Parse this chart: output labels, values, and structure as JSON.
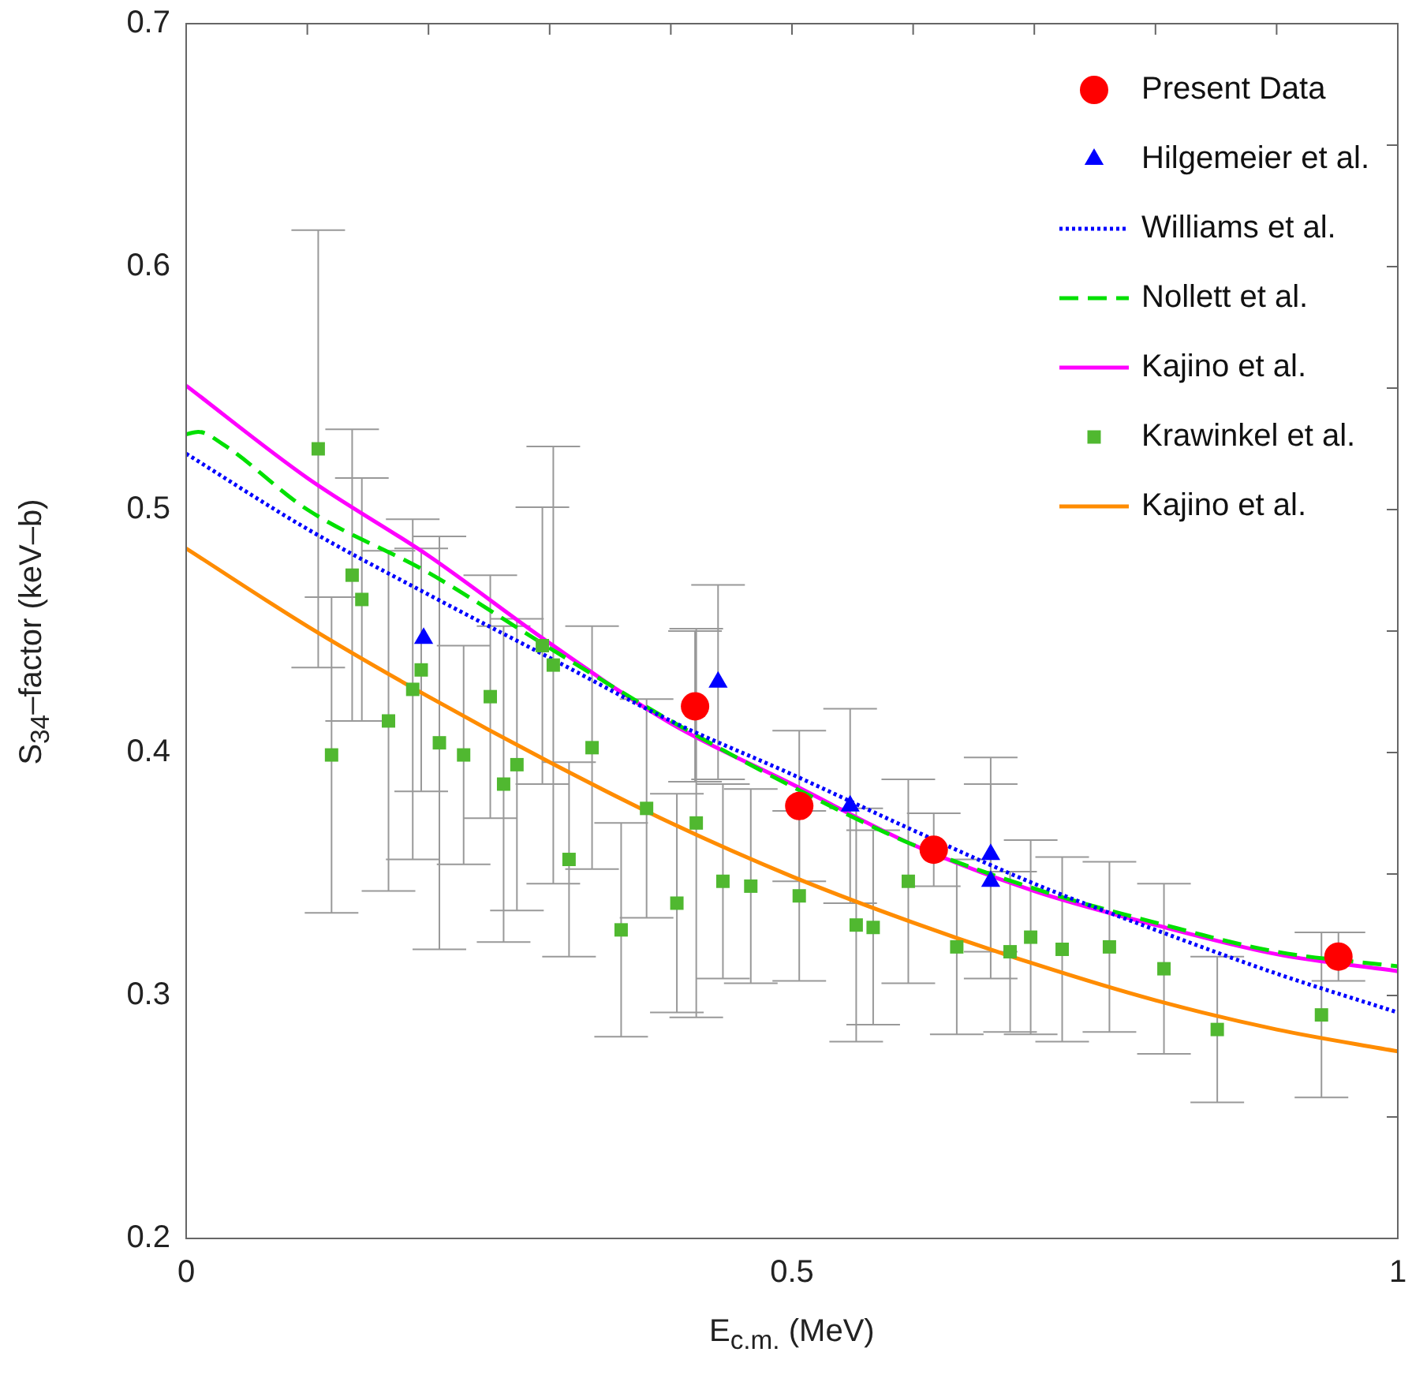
{
  "chart_data": {
    "type": "scatter",
    "xlabel": "E$_{c.m.}$ (MeV)",
    "ylabel": "S$_{34}$–factor (keV–b)",
    "xlim": [
      0,
      1
    ],
    "ylim": [
      0.2,
      0.7
    ],
    "xticks": [
      0,
      {
        "value": 0.1,
        "label": null
      },
      {
        "value": 0.2,
        "label": null
      },
      {
        "value": 0.3,
        "label": null
      },
      {
        "value": 0.4,
        "label": null
      },
      0.5,
      {
        "value": 0.6,
        "label": null
      },
      {
        "value": 0.7,
        "label": null
      },
      {
        "value": 0.8,
        "label": null
      },
      {
        "value": 0.9,
        "label": null
      },
      1
    ],
    "yticks": [
      0.2,
      {
        "value": 0.25,
        "label": null
      },
      0.3,
      {
        "value": 0.35,
        "label": null
      },
      0.4,
      {
        "value": 0.45,
        "label": null
      },
      0.5,
      {
        "value": 0.55,
        "label": null
      },
      0.6,
      {
        "value": 0.65,
        "label": null
      },
      0.7
    ],
    "grid": false,
    "legend": "top right",
    "series": [
      {
        "name": "Present Data",
        "marker": "circle",
        "color": "#ff0000",
        "x": [
          0.42,
          0.506,
          0.617,
          0.951
        ],
        "values": [
          0.419,
          0.378,
          0.36,
          0.316
        ],
        "errors": [
          0.031,
          0.031,
          0.015,
          0.01
        ]
      },
      {
        "name": "Hilgemeier et al.",
        "marker": "triangle",
        "color": "#0000ff",
        "x": [
          0.196,
          0.439,
          0.548,
          0.664,
          0.664
        ],
        "values": [
          0.447,
          0.429,
          0.378,
          0.358,
          0.347
        ],
        "errors": [
          null,
          0.04,
          0.04,
          0.04,
          0.04
        ]
      },
      {
        "name": "Williams et al.",
        "type": "line",
        "line_style": "dotted",
        "color": "#0000ff",
        "x": [
          0,
          0.1,
          0.2,
          0.3,
          0.4,
          0.5,
          0.6,
          0.7,
          0.8,
          0.9,
          1
        ],
        "values": [
          0.523,
          0.492,
          0.465,
          0.439,
          0.413,
          0.391,
          0.368,
          0.346,
          0.327,
          0.309,
          0.293
        ]
      },
      {
        "name": "Nollett et al.",
        "type": "line",
        "line_style": "dashed",
        "color": "#00e000",
        "x": [
          0,
          0.01,
          0.03,
          0.1,
          0.2,
          0.3,
          0.4,
          0.5,
          0.6,
          0.7,
          0.8,
          0.9,
          1
        ],
        "values": [
          0.531,
          0.532,
          0.527,
          0.5,
          0.474,
          0.443,
          0.413,
          0.386,
          0.362,
          0.344,
          0.33,
          0.318,
          0.312
        ]
      },
      {
        "name": "Kajino et al.",
        "type": "line",
        "line_style": "solid",
        "color": "#ff00ff",
        "x": [
          0,
          0.1,
          0.2,
          0.3,
          0.4,
          0.5,
          0.6,
          0.7,
          0.8,
          0.9,
          1
        ],
        "values": [
          0.551,
          0.513,
          0.481,
          0.445,
          0.412,
          0.387,
          0.362,
          0.343,
          0.329,
          0.317,
          0.31
        ]
      },
      {
        "name": "Krawinkel et al.",
        "marker": "square",
        "color": "#50b830",
        "x": [
          0.109,
          0.12,
          0.137,
          0.145,
          0.167,
          0.187,
          0.194,
          0.209,
          0.229,
          0.251,
          0.262,
          0.273,
          0.294,
          0.303,
          0.316,
          0.335,
          0.359,
          0.38,
          0.405,
          0.421,
          0.443,
          0.466,
          0.506,
          0.553,
          0.567,
          0.596,
          0.636,
          0.68,
          0.697,
          0.723,
          0.762,
          0.807,
          0.851,
          0.937
        ],
        "values": [
          0.525,
          0.399,
          0.473,
          0.463,
          0.413,
          0.426,
          0.434,
          0.404,
          0.399,
          0.423,
          0.387,
          0.395,
          0.444,
          0.436,
          0.356,
          0.402,
          0.327,
          0.377,
          0.338,
          0.371,
          0.347,
          0.345,
          0.341,
          0.329,
          0.328,
          0.347,
          0.32,
          0.318,
          0.324,
          0.319,
          0.32,
          0.311,
          0.286,
          0.292
        ],
        "errors": [
          0.09,
          0.065,
          0.06,
          0.05,
          0.07,
          0.07,
          0.05,
          0.085,
          0.045,
          0.05,
          0.065,
          0.06,
          0.057,
          0.09,
          0.04,
          0.05,
          0.044,
          0.045,
          0.045,
          0.08,
          0.04,
          0.04,
          0.035,
          0.048,
          0.04,
          0.042,
          0.036,
          0.033,
          0.04,
          0.038,
          0.035,
          0.035,
          0.03,
          0.034
        ]
      },
      {
        "name": "Kajino et al.",
        "type": "line",
        "line_style": "solid",
        "color": "#ff8c00",
        "x": [
          0,
          0.1,
          0.2,
          0.3,
          0.4,
          0.5,
          0.6,
          0.7,
          0.8,
          0.9,
          1
        ],
        "values": [
          0.484,
          0.452,
          0.423,
          0.396,
          0.371,
          0.349,
          0.33,
          0.313,
          0.298,
          0.286,
          0.277
        ]
      }
    ]
  }
}
